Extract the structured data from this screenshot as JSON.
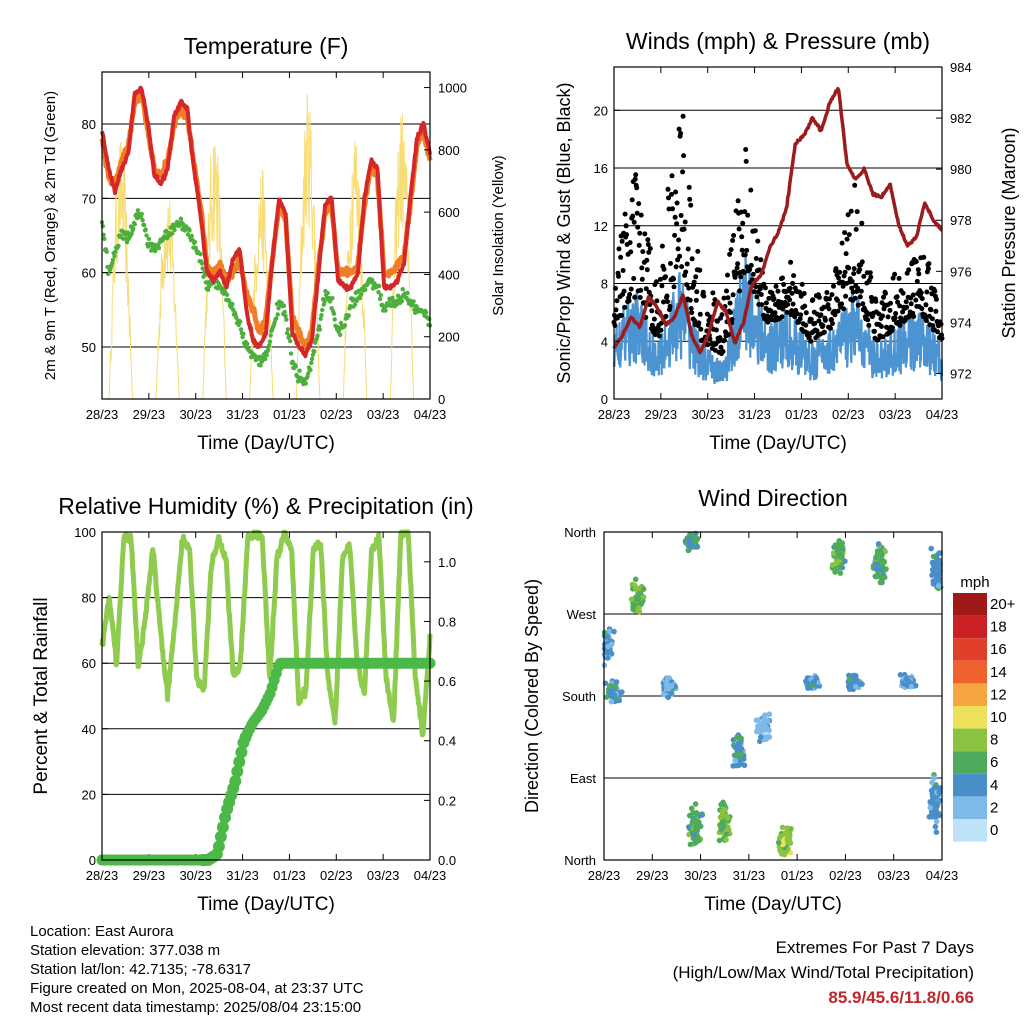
{
  "chart_data": [
    {
      "type": "line",
      "title": "Temperature (F)",
      "xlabel": "Time (Day/UTC)",
      "ylabel": "2m & 9m T (Red, Orange) & 2m Td (Green)",
      "y2label": "Solar Insolation (Yellow)",
      "x_ticks": [
        "28/23",
        "29/23",
        "30/23",
        "31/23",
        "01/23",
        "02/23",
        "03/23",
        "04/23"
      ],
      "ylim": [
        43,
        87
      ],
      "y_ticks": [
        50,
        60,
        70,
        80
      ],
      "y2lim": [
        0,
        1050
      ],
      "y2_ticks": [
        0,
        200,
        400,
        600,
        800,
        1000
      ],
      "grid": true,
      "series": [
        {
          "name": "2m T",
          "color": "#d62728",
          "values": [
            79,
            74,
            71,
            74,
            76,
            84,
            85,
            80,
            73,
            72,
            74,
            81,
            83,
            82,
            74,
            68,
            60,
            59,
            60,
            58,
            62,
            63,
            55,
            51,
            50,
            52,
            62,
            70,
            68,
            52,
            50,
            49,
            51,
            60,
            69,
            70,
            59,
            58,
            58,
            60,
            70,
            75,
            74,
            58,
            58,
            59,
            61,
            70,
            78,
            80,
            76
          ]
        },
        {
          "name": "9m T",
          "color": "#f07e26",
          "values": [
            78,
            73,
            72,
            75,
            77,
            83,
            84,
            79,
            74,
            73,
            75,
            80,
            82,
            81,
            75,
            69,
            61,
            60,
            61,
            59,
            60,
            62,
            57,
            55,
            52,
            54,
            62,
            69,
            67,
            54,
            52,
            50,
            52,
            61,
            68,
            69,
            60,
            60,
            60,
            61,
            69,
            74,
            73,
            60,
            60,
            61,
            62,
            69,
            77,
            79,
            75
          ]
        },
        {
          "name": "2m Td",
          "color": "#4daf3c",
          "values": [
            67,
            60,
            63,
            65,
            65,
            67,
            68,
            64,
            63,
            64,
            65,
            66,
            67,
            66,
            64,
            62,
            58,
            59,
            58,
            57,
            55,
            53,
            50,
            49,
            48,
            49,
            52,
            56,
            54,
            48,
            46,
            45,
            48,
            52,
            57,
            56,
            52,
            53,
            56,
            57,
            58,
            59,
            58,
            55,
            56,
            56,
            57,
            56,
            55,
            55,
            53
          ]
        }
      ],
      "solar": {
        "name": "Solar Insolation",
        "color": "#f8dc74",
        "day_peaks": [
          850,
          700,
          900,
          750,
          1000,
          900,
          950,
          700
        ]
      }
    },
    {
      "type": "scatter",
      "title": "Winds (mph) & Pressure (mb)",
      "xlabel": "Time (Day/UTC)",
      "ylabel": "Sonic/Prop Wind & Gust (Blue, Black)",
      "y2label": "Station Pressure (Maroon)",
      "x_ticks": [
        "28/23",
        "29/23",
        "30/23",
        "31/23",
        "01/23",
        "02/23",
        "03/23",
        "04/23"
      ],
      "ylim": [
        0,
        23
      ],
      "y_ticks": [
        0,
        4,
        8,
        12,
        16,
        20
      ],
      "y2lim": [
        971,
        984
      ],
      "y2_ticks": [
        972,
        974,
        976,
        978,
        980,
        982,
        984
      ],
      "grid": true,
      "wind_daily_mean": [
        4,
        6,
        3,
        7,
        3,
        2,
        8,
        4,
        5,
        3,
        4,
        6,
        3,
        4,
        5,
        3
      ],
      "gust_daily_peak": [
        9,
        15,
        7,
        21,
        7,
        6,
        17,
        6,
        9,
        6,
        7,
        14,
        6,
        8,
        10,
        6
      ],
      "pressure": {
        "name": "Station Pressure",
        "color": "#9b1c1c",
        "values": [
          973.0,
          973.5,
          974.2,
          973.8,
          975.0,
          974.6,
          973.9,
          974.2,
          975.1,
          973.5,
          972.8,
          973.6,
          974.8,
          974.4,
          973.2,
          974.0,
          975.5,
          975.8,
          976.9,
          977.5,
          978.5,
          981.0,
          981.3,
          982.0,
          981.5,
          982.6,
          983.2,
          980.2,
          979.6,
          980.0,
          979.0,
          978.9,
          979.4,
          977.8,
          977.0,
          977.3,
          978.7,
          978.0,
          977.6
        ]
      }
    },
    {
      "type": "line",
      "title": "Relative Humidity (%) & Precipitation (in)",
      "xlabel": "Time (Day/UTC)",
      "ylabel": "Percent & Total Rainfall",
      "x_ticks": [
        "28/23",
        "29/23",
        "30/23",
        "31/23",
        "01/23",
        "02/23",
        "03/23",
        "04/23"
      ],
      "ylim": [
        0,
        100
      ],
      "y_ticks": [
        0,
        20,
        40,
        60,
        80,
        100
      ],
      "y2lim": [
        0,
        1.1
      ],
      "y2_ticks": [
        "0.0",
        "0.2",
        "0.4",
        "0.6",
        "0.8",
        "1.0"
      ],
      "grid": true,
      "series": [
        {
          "name": "Relative Humidity",
          "color": "#8fcb4f",
          "values": [
            65,
            80,
            60,
            98,
            98,
            58,
            75,
            95,
            70,
            50,
            72,
            98,
            95,
            55,
            52,
            90,
            98,
            92,
            56,
            60,
            98,
            100,
            98,
            55,
            92,
            100,
            95,
            48,
            52,
            95,
            96,
            55,
            42,
            92,
            96,
            60,
            50,
            95,
            98,
            55,
            42,
            99,
            100,
            55,
            38,
            68
          ]
        },
        {
          "name": "Total Precipitation",
          "color": "#4cb847",
          "values": [
            0,
            0,
            0,
            0,
            0,
            0,
            0,
            0,
            0,
            0,
            0,
            0,
            0,
            0.02,
            0.16,
            0.26,
            0.4,
            0.46,
            0.5,
            0.56,
            0.66,
            0.66,
            0.66,
            0.66,
            0.66,
            0.66,
            0.66,
            0.66,
            0.66,
            0.66,
            0.66,
            0.66,
            0.66,
            0.66,
            0.66,
            0.66,
            0.66,
            0.66
          ]
        }
      ]
    },
    {
      "type": "scatter",
      "title": "Wind Direction",
      "xlabel": "Time (Day/UTC)",
      "ylabel": "Direction (Colored By Speed)",
      "x_ticks": [
        "28/23",
        "29/23",
        "30/23",
        "31/23",
        "01/23",
        "02/23",
        "03/23",
        "04/23"
      ],
      "y_categories": [
        "North",
        "East",
        "South",
        "West",
        "North"
      ],
      "ylim": [
        0,
        360
      ],
      "grid": true,
      "direction_clusters": [
        {
          "day": 0.05,
          "dir": 235,
          "spread": 25,
          "speed": 3
        },
        {
          "day": 0.2,
          "dir": 185,
          "spread": 15,
          "speed": 4
        },
        {
          "day": 0.7,
          "dir": 290,
          "spread": 25,
          "speed": 7
        },
        {
          "day": 1.35,
          "dir": 190,
          "spread": 15,
          "speed": 3
        },
        {
          "day": 1.8,
          "dir": 350,
          "spread": 15,
          "speed": 5
        },
        {
          "day": 1.9,
          "dir": 35,
          "spread": 30,
          "speed": 6
        },
        {
          "day": 2.5,
          "dir": 40,
          "spread": 30,
          "speed": 7
        },
        {
          "day": 2.8,
          "dir": 120,
          "spread": 25,
          "speed": 4
        },
        {
          "day": 3.3,
          "dir": 145,
          "spread": 20,
          "speed": 2
        },
        {
          "day": 3.75,
          "dir": 20,
          "spread": 20,
          "speed": 8
        },
        {
          "day": 4.3,
          "dir": 195,
          "spread": 10,
          "speed": 4
        },
        {
          "day": 4.85,
          "dir": 335,
          "spread": 25,
          "speed": 6
        },
        {
          "day": 5.2,
          "dir": 195,
          "spread": 10,
          "speed": 4
        },
        {
          "day": 5.7,
          "dir": 325,
          "spread": 30,
          "speed": 6
        },
        {
          "day": 6.3,
          "dir": 195,
          "spread": 10,
          "speed": 3
        },
        {
          "day": 6.85,
          "dir": 60,
          "spread": 40,
          "speed": 4
        },
        {
          "day": 6.9,
          "dir": 320,
          "spread": 30,
          "speed": 4
        }
      ],
      "legend": {
        "title": "mph",
        "placement": "right",
        "labels": [
          "20+",
          "18",
          "16",
          "14",
          "12",
          "10",
          "8",
          "6",
          "4",
          "2",
          "0"
        ],
        "colors": [
          "#a01919",
          "#cc2027",
          "#e0402a",
          "#f0622d",
          "#f7a540",
          "#ede05a",
          "#8ac33f",
          "#4fab5c",
          "#4a8ec9",
          "#7eb9e8",
          "#bde3f6"
        ]
      }
    }
  ],
  "footer": {
    "location": "Location: East Aurora",
    "elevation": "Station elevation: 377.038 m",
    "latlon": "Station lat/lon: 42.7135; -78.6317",
    "created": "Figure created on Mon, 2025-08-04, at 23:37 UTC",
    "recent": "Most recent data timestamp: 2025/08/04 23:15:00"
  },
  "extremes": {
    "title": "Extremes For Past 7 Days",
    "subtitle": "(High/Low/Max Wind/Total Precipitation)",
    "values": "85.9/45.6/11.8/0.66"
  }
}
